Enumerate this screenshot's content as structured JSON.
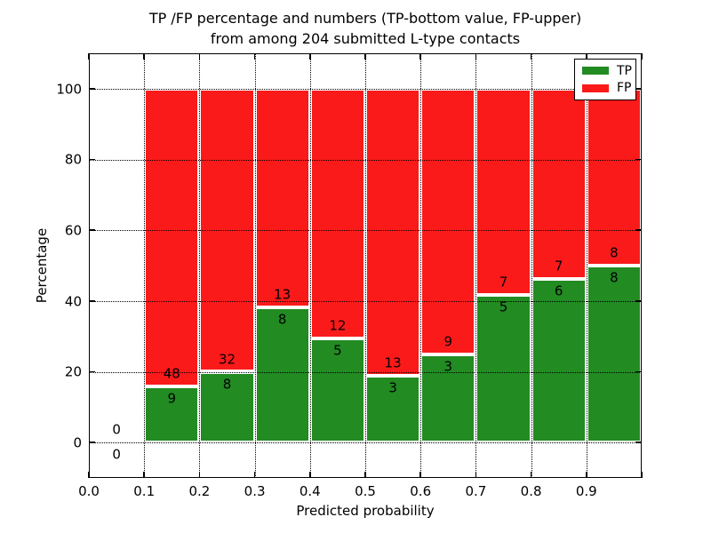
{
  "figure": {
    "title_line1": "TP /FP percentage and numbers (TP-bottom value, FP-upper)",
    "title_line2": "from among 204 submitted L-type contacts",
    "xlabel": "Predicted probability",
    "ylabel": "Percentage"
  },
  "legend": {
    "tp_label": "TP",
    "fp_label": "FP"
  },
  "colors": {
    "tp_green": "#228B22",
    "fp_red": "#FA1A1A",
    "axis_black": "#000000",
    "background": "#FFFFFF"
  },
  "chart_data": {
    "type": "bar",
    "stacked": true,
    "normalized_to_percent": true,
    "title": "TP /FP percentage and numbers (TP-bottom value, FP-upper) from among 204 submitted L-type contacts",
    "xlabel": "Predicted probability",
    "ylabel": "Percentage",
    "bin_width": 0.1,
    "bin_starts": [
      0.0,
      0.1,
      0.2,
      0.3,
      0.4,
      0.5,
      0.6,
      0.7,
      0.8,
      0.9
    ],
    "series": [
      {
        "name": "TP",
        "color": "#228B22",
        "counts": [
          0,
          9,
          8,
          8,
          5,
          3,
          3,
          5,
          6,
          8
        ]
      },
      {
        "name": "FP",
        "color": "#FA1A1A",
        "counts": [
          0,
          48,
          32,
          13,
          12,
          13,
          9,
          7,
          7,
          8
        ]
      }
    ],
    "tp_percent": [
      0,
      15.8,
      20.0,
      38.1,
      29.4,
      18.8,
      25.0,
      41.7,
      46.2,
      50.0
    ],
    "total_contacts": 204,
    "xticks": [
      "0.0",
      "0.1",
      "0.2",
      "0.3",
      "0.4",
      "0.5",
      "0.6",
      "0.7",
      "0.8",
      "0.9"
    ],
    "yticks": [
      0,
      20,
      40,
      60,
      80,
      100
    ],
    "xlim": [
      0.0,
      1.0
    ],
    "ylim": [
      -10,
      110
    ],
    "grid": "dotted",
    "legend_position": "upper right",
    "legend_entries": [
      "TP",
      "FP"
    ]
  }
}
